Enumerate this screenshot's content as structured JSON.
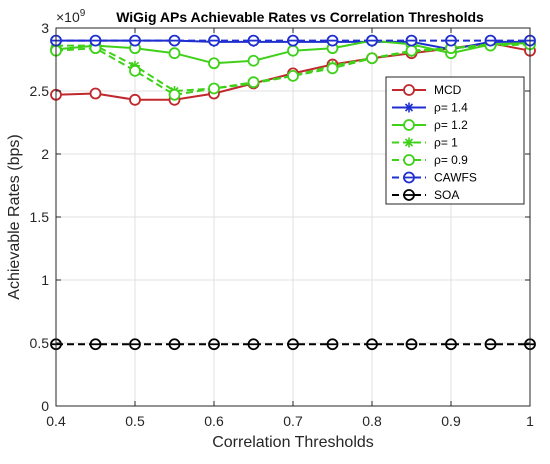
{
  "chart_data": {
    "type": "line",
    "title": "WiGig APs Achievable Rates vs Correlation Thresholds",
    "xlabel": "Correlation Thresholds",
    "ylabel": "Achievable Rates (bps)",
    "y_exponent_label": "×10",
    "y_exponent_power": "9",
    "xlim": [
      0.4,
      1
    ],
    "ylim": [
      0,
      3
    ],
    "x_ticks": [
      0.4,
      0.5,
      0.6,
      0.7,
      0.8,
      0.9,
      1
    ],
    "x_tick_labels": [
      "0.4",
      "0.5",
      "0.6",
      "0.7",
      "0.8",
      "0.9",
      "1"
    ],
    "y_ticks": [
      0,
      0.5,
      1,
      1.5,
      2,
      2.5,
      3
    ],
    "y_tick_labels": [
      "0",
      "0.5",
      "1",
      "1.5",
      "2",
      "2.5",
      "3"
    ],
    "grid": true,
    "legend_position": "top-right",
    "x": [
      0.4,
      0.45,
      0.5,
      0.55,
      0.6,
      0.65,
      0.7,
      0.75,
      0.8,
      0.85,
      0.9,
      0.95,
      1.0
    ],
    "series": [
      {
        "name": "MCD",
        "color": "#c1272d",
        "dash": "solid",
        "marker": "circle-open",
        "values": [
          2.47,
          2.48,
          2.43,
          2.43,
          2.48,
          2.56,
          2.64,
          2.71,
          2.76,
          2.8,
          2.84,
          2.88,
          2.82
        ]
      },
      {
        "name": "ρ= 1.4",
        "color": "#1f2fcf",
        "dash": "solid",
        "marker": "asterisk",
        "values": [
          2.9,
          2.9,
          2.9,
          2.9,
          2.89,
          2.89,
          2.89,
          2.89,
          2.89,
          2.89,
          2.83,
          2.89,
          2.89
        ]
      },
      {
        "name": "ρ= 1.2",
        "color": "#3fd119",
        "dash": "solid",
        "marker": "circle-open",
        "values": [
          2.83,
          2.86,
          2.84,
          2.8,
          2.72,
          2.74,
          2.82,
          2.84,
          2.9,
          2.87,
          2.8,
          2.87,
          2.88
        ]
      },
      {
        "name": "ρ= 1",
        "color": "#3fd119",
        "dash": "dashed",
        "marker": "asterisk",
        "values": [
          2.86,
          2.86,
          2.7,
          2.5,
          2.52,
          2.56,
          2.62,
          2.7,
          2.76,
          2.81,
          2.84,
          2.87,
          2.88
        ]
      },
      {
        "name": "ρ= 0.9",
        "color": "#3fd119",
        "dash": "dashed",
        "marker": "circle-open",
        "values": [
          2.82,
          2.84,
          2.66,
          2.47,
          2.52,
          2.57,
          2.62,
          2.68,
          2.76,
          2.82,
          2.84,
          2.86,
          2.87
        ]
      },
      {
        "name": "CAWFS",
        "color": "#1f2fcf",
        "dash": "dashed",
        "marker": "circle-bar",
        "values": [
          2.9,
          2.9,
          2.9,
          2.9,
          2.9,
          2.9,
          2.9,
          2.9,
          2.9,
          2.9,
          2.9,
          2.9,
          2.9
        ]
      },
      {
        "name": "SOA",
        "color": "#000000",
        "dash": "dashed",
        "marker": "circle-bar",
        "values": [
          0.49,
          0.49,
          0.49,
          0.49,
          0.49,
          0.49,
          0.49,
          0.49,
          0.49,
          0.49,
          0.49,
          0.49,
          0.49
        ]
      }
    ]
  }
}
